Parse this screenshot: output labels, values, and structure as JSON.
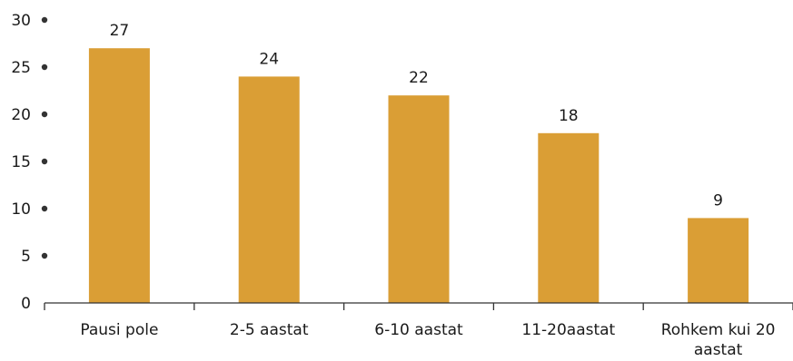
{
  "chart_data": {
    "type": "bar",
    "categories": [
      "Pausi pole",
      "2-5 aastat",
      "6-10 aastat",
      "11-20aastat",
      "Rohkem kui 20 aastat"
    ],
    "category_lines": [
      [
        "Pausi pole"
      ],
      [
        "2-5 aastat"
      ],
      [
        "6-10 aastat"
      ],
      [
        "11-20aastat"
      ],
      [
        "Rohkem kui 20",
        "aastat"
      ]
    ],
    "values": [
      27,
      24,
      22,
      18,
      9
    ],
    "data_labels": [
      "27",
      "24",
      "22",
      "18",
      "9"
    ],
    "yticks": [
      0,
      5,
      10,
      15,
      20,
      25,
      30
    ],
    "ylim": [
      0,
      30
    ],
    "title": "",
    "xlabel": "",
    "ylabel": "",
    "grid": false,
    "legend": "none",
    "colors": {
      "bar": "#DA9E35",
      "axis": "#333333",
      "text": "#1a1a1a"
    }
  }
}
